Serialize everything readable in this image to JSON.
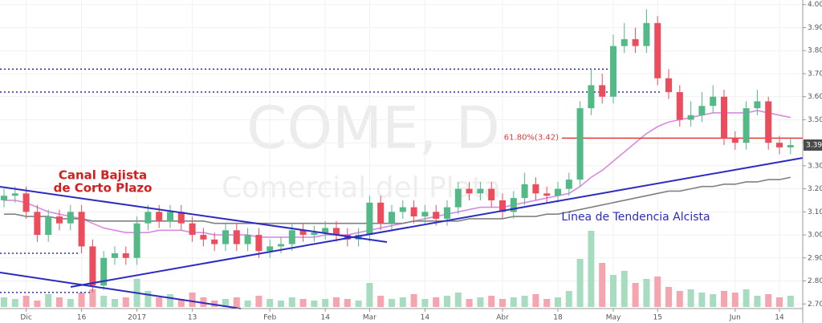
{
  "chart_data": {
    "type": "candlestick",
    "title": "COME, D",
    "subtitle": "Comercial del Plata",
    "categories": [
      null,
      null,
      "Dic",
      null,
      null,
      null,
      null,
      "16",
      null,
      null,
      null,
      null,
      "2017",
      null,
      null,
      null,
      null,
      "13",
      null,
      null,
      null,
      null,
      null,
      null,
      "Feb",
      null,
      null,
      null,
      null,
      "14",
      null,
      null,
      null,
      "Mar",
      null,
      null,
      null,
      null,
      "14",
      null,
      null,
      null,
      null,
      null,
      null,
      "Abr",
      null,
      null,
      null,
      null,
      "18",
      null,
      null,
      null,
      null,
      "May",
      null,
      null,
      null,
      "15",
      null,
      null,
      null,
      null,
      null,
      null,
      "Jun",
      null,
      null,
      null,
      "14",
      null
    ],
    "open": [
      3.15,
      3.17,
      3.18,
      3.1,
      3.0,
      3.08,
      3.05,
      3.1,
      2.95,
      2.78,
      2.9,
      2.92,
      2.9,
      3.05,
      3.1,
      3.06,
      3.1,
      3.05,
      3.0,
      2.98,
      2.96,
      3.02,
      2.96,
      3.0,
      2.93,
      2.95,
      2.96,
      3.02,
      3.0,
      3.01,
      3.03,
      3.0,
      2.98,
      3.0,
      3.14,
      3.05,
      3.1,
      3.12,
      3.08,
      3.1,
      3.07,
      3.12,
      3.2,
      3.18,
      3.2,
      3.15,
      3.1,
      3.16,
      3.22,
      3.18,
      3.17,
      3.2,
      3.24,
      3.55,
      3.65,
      3.6,
      3.82,
      3.85,
      3.82,
      3.92,
      3.68,
      3.62,
      3.5,
      3.52,
      3.56,
      3.6,
      3.42,
      3.4,
      3.55,
      3.58,
      3.4,
      3.38
    ],
    "high": [
      3.2,
      3.21,
      3.21,
      3.13,
      3.11,
      3.11,
      3.13,
      3.13,
      2.98,
      2.93,
      2.95,
      2.95,
      3.08,
      3.13,
      3.13,
      3.13,
      3.13,
      3.08,
      3.03,
      3.01,
      3.05,
      3.05,
      3.03,
      3.03,
      2.98,
      2.99,
      3.05,
      3.05,
      3.04,
      3.06,
      3.06,
      3.03,
      3.03,
      3.17,
      3.17,
      3.13,
      3.15,
      3.15,
      3.13,
      3.13,
      3.15,
      3.23,
      3.23,
      3.23,
      3.23,
      3.18,
      3.19,
      3.27,
      3.25,
      3.21,
      3.23,
      3.27,
      3.58,
      3.72,
      3.7,
      3.87,
      3.92,
      3.9,
      3.98,
      3.95,
      3.72,
      3.65,
      3.58,
      3.62,
      3.65,
      3.63,
      3.45,
      3.58,
      3.63,
      3.6,
      3.43,
      3.42
    ],
    "low": [
      3.12,
      3.14,
      3.07,
      2.97,
      2.97,
      3.02,
      3.02,
      2.92,
      2.75,
      2.76,
      2.87,
      2.87,
      2.87,
      3.02,
      3.03,
      3.03,
      3.02,
      2.97,
      2.95,
      2.93,
      2.93,
      2.93,
      2.93,
      2.9,
      2.9,
      2.92,
      2.93,
      2.97,
      2.97,
      2.98,
      2.97,
      2.95,
      2.95,
      2.97,
      3.02,
      3.02,
      3.07,
      3.05,
      3.05,
      3.04,
      3.04,
      3.09,
      3.15,
      3.15,
      3.12,
      3.07,
      3.07,
      3.13,
      3.15,
      3.14,
      3.14,
      3.17,
      3.21,
      3.52,
      3.57,
      3.57,
      3.79,
      3.79,
      3.79,
      3.65,
      3.59,
      3.47,
      3.47,
      3.49,
      3.53,
      3.39,
      3.37,
      3.37,
      3.52,
      3.37,
      3.35,
      3.35
    ],
    "close": [
      3.17,
      3.18,
      3.1,
      3.0,
      3.08,
      3.05,
      3.1,
      2.95,
      2.78,
      2.9,
      2.92,
      2.9,
      3.05,
      3.1,
      3.06,
      3.1,
      3.05,
      3.0,
      2.98,
      2.96,
      3.02,
      2.96,
      3.0,
      2.93,
      2.95,
      2.96,
      3.02,
      3.0,
      3.01,
      3.03,
      3.0,
      2.98,
      3.0,
      3.14,
      3.05,
      3.1,
      3.12,
      3.08,
      3.1,
      3.07,
      3.12,
      3.2,
      3.18,
      3.2,
      3.15,
      3.1,
      3.16,
      3.22,
      3.18,
      3.17,
      3.2,
      3.24,
      3.55,
      3.65,
      3.6,
      3.82,
      3.85,
      3.82,
      3.92,
      3.68,
      3.62,
      3.5,
      3.52,
      3.56,
      3.6,
      3.42,
      3.4,
      3.55,
      3.58,
      3.4,
      3.38,
      3.39
    ],
    "volume": [
      12,
      10,
      14,
      8,
      16,
      12,
      10,
      18,
      22,
      14,
      10,
      12,
      35,
      20,
      12,
      16,
      10,
      18,
      12,
      8,
      10,
      12,
      8,
      14,
      10,
      8,
      12,
      10,
      8,
      10,
      12,
      10,
      8,
      30,
      14,
      10,
      12,
      16,
      10,
      12,
      14,
      18,
      10,
      12,
      14,
      10,
      12,
      14,
      16,
      10,
      12,
      20,
      60,
      95,
      55,
      40,
      45,
      30,
      35,
      38,
      25,
      20,
      22,
      18,
      16,
      20,
      18,
      22,
      14,
      16,
      12,
      14
    ],
    "moving_averages": [
      {
        "color": "#d88be0",
        "values": [
          3.15,
          3.15,
          3.14,
          3.12,
          3.1,
          3.09,
          3.08,
          3.07,
          3.05,
          3.03,
          3.02,
          3.01,
          3.01,
          3.01,
          3.02,
          3.02,
          3.02,
          3.01,
          3.01,
          3.0,
          3.0,
          3.0,
          3.0,
          2.99,
          2.99,
          2.99,
          2.99,
          2.99,
          2.99,
          3.0,
          3.0,
          3.0,
          3.01,
          3.02,
          3.03,
          3.04,
          3.05,
          3.06,
          3.07,
          3.08,
          3.09,
          3.1,
          3.11,
          3.12,
          3.12,
          3.12,
          3.13,
          3.14,
          3.15,
          3.16,
          3.17,
          3.18,
          3.21,
          3.25,
          3.28,
          3.32,
          3.36,
          3.4,
          3.44,
          3.47,
          3.49,
          3.5,
          3.51,
          3.52,
          3.53,
          3.53,
          3.53,
          3.53,
          3.54,
          3.53,
          3.52,
          3.51
        ]
      },
      {
        "color": "#808080",
        "values": [
          3.09,
          3.09,
          3.08,
          3.08,
          3.08,
          3.07,
          3.07,
          3.07,
          3.06,
          3.06,
          3.06,
          3.06,
          3.06,
          3.06,
          3.06,
          3.06,
          3.06,
          3.06,
          3.06,
          3.05,
          3.05,
          3.05,
          3.05,
          3.05,
          3.05,
          3.05,
          3.05,
          3.05,
          3.05,
          3.05,
          3.05,
          3.05,
          3.05,
          3.05,
          3.05,
          3.05,
          3.05,
          3.06,
          3.06,
          3.06,
          3.06,
          3.06,
          3.07,
          3.07,
          3.07,
          3.07,
          3.08,
          3.08,
          3.08,
          3.09,
          3.09,
          3.1,
          3.11,
          3.12,
          3.13,
          3.14,
          3.15,
          3.16,
          3.17,
          3.18,
          3.19,
          3.19,
          3.2,
          3.21,
          3.21,
          3.22,
          3.22,
          3.23,
          3.23,
          3.24,
          3.24,
          3.25
        ]
      }
    ],
    "colors": {
      "up": "#53b987",
      "down": "#eb4d5c",
      "up_volume": "#a8dcc0",
      "down_volume": "#f4a5ad"
    },
    "ylim": [
      2.68,
      4.02
    ],
    "yticks": [
      {
        "value": 2.7,
        "label": "2.70"
      },
      {
        "value": 2.8,
        "label": "2.80"
      },
      {
        "value": 2.9,
        "label": "2.90"
      },
      {
        "value": 3,
        "label": "3.00"
      },
      {
        "value": 3.1,
        "label": "3.10"
      },
      {
        "value": 3.2,
        "label": "3.20"
      },
      {
        "value": 3.3,
        "label": "3.30"
      },
      {
        "value": 3.4,
        "label": "3.40"
      },
      {
        "value": 3.5,
        "label": "3.50"
      },
      {
        "value": 3.6,
        "label": "3.60"
      },
      {
        "value": 3.7,
        "label": "3.70"
      },
      {
        "value": 3.8,
        "label": "3.80"
      },
      {
        "value": 3.9,
        "label": "3.90"
      },
      {
        "value": 4,
        "label": "4.00"
      }
    ],
    "y2lim": [
      0,
      100
    ],
    "grid": true,
    "dotted_levels": [
      3.72,
      3.62,
      2.92,
      2.75
    ],
    "fib_level": {
      "value": 3.42,
      "label": "61.80%(3.42)",
      "color": "#e53935"
    },
    "last_price": 3.39,
    "annotations": [
      "Canal Bajista",
      "de Corto Plazo",
      "Línea de Tendencia Alcista"
    ]
  }
}
